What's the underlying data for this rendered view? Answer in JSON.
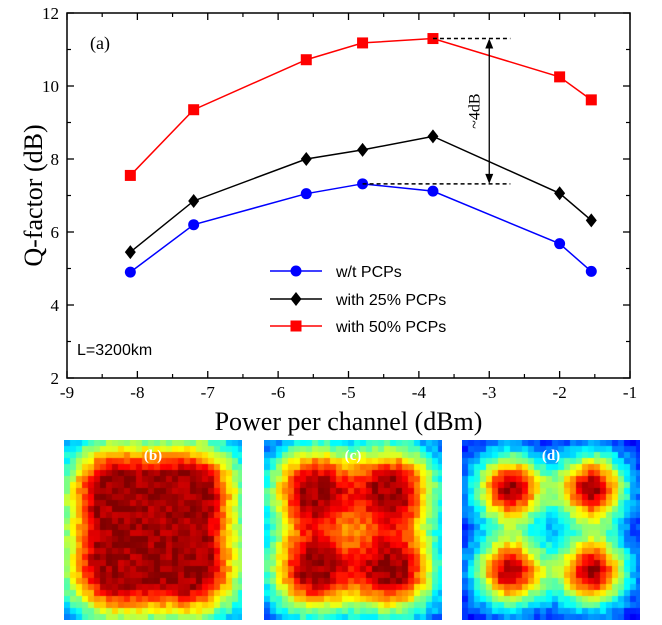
{
  "chart_data": {
    "type": "line",
    "panel_label": "(a)",
    "xlabel": "Power per channel (dBm)",
    "ylabel": "Q-factor (dB)",
    "xlim": [
      -9,
      -1
    ],
    "ylim": [
      2,
      12
    ],
    "x_ticks": [
      -9,
      -8,
      -7,
      -6,
      -5,
      -4,
      -3,
      -2,
      -1
    ],
    "y_ticks": [
      2,
      4,
      6,
      8,
      10,
      12
    ],
    "x_tick_labels": [
      "-9",
      "-8",
      "-7",
      "-6",
      "-5",
      "-4",
      "-3",
      "-2",
      "-1"
    ],
    "y_tick_labels": [
      "2",
      "4",
      "6",
      "8",
      "10",
      "12"
    ],
    "grid": false,
    "legend_position": "bottom-center",
    "series": [
      {
        "name": "w/t PCPs",
        "color": "#0000ff",
        "marker": "circle",
        "x": [
          -8.1,
          -7.2,
          -5.6,
          -4.8,
          -3.8,
          -2.0,
          -1.55
        ],
        "y": [
          4.9,
          6.2,
          7.05,
          7.32,
          7.12,
          5.68,
          4.92
        ]
      },
      {
        "name": "with 25% PCPs",
        "color": "#000000",
        "marker": "diamond",
        "x": [
          -8.1,
          -7.2,
          -5.6,
          -4.8,
          -3.8,
          -2.0,
          -1.55
        ],
        "y": [
          5.45,
          6.85,
          8.0,
          8.25,
          8.62,
          7.06,
          6.32
        ]
      },
      {
        "name": "with 50% PCPs",
        "color": "#ff0000",
        "marker": "square",
        "x": [
          -8.1,
          -7.2,
          -5.6,
          -4.8,
          -3.8,
          -2.0,
          -1.55
        ],
        "y": [
          7.55,
          9.35,
          10.72,
          11.18,
          11.3,
          10.25,
          9.62
        ]
      }
    ],
    "annotations": {
      "gain_label": "~4dB",
      "gain_x": -3.0,
      "gain_from_y": 7.32,
      "gain_to_y": 11.3,
      "dash_top_from_x": -3.8,
      "dash_bottom_from_x": -4.8,
      "dash_to_x": -2.7,
      "distance_label": "L=3200km"
    }
  },
  "constellation_panels": [
    {
      "label": "(b)",
      "spread": 1.0
    },
    {
      "label": "(c)",
      "spread": 0.85
    },
    {
      "label": "(d)",
      "spread": 0.6
    }
  ]
}
